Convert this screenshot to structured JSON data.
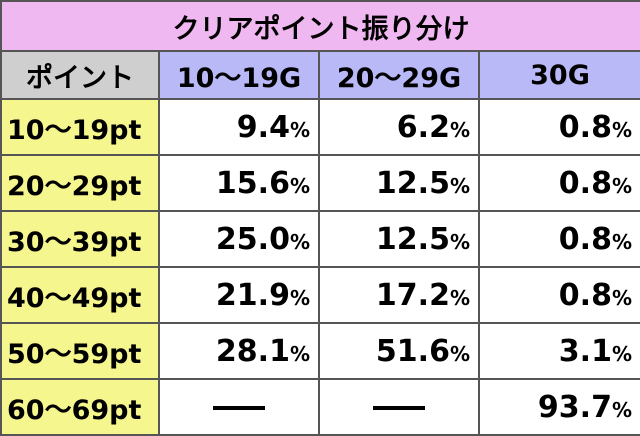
{
  "title": "クリアポイント振り分け",
  "header": {
    "corner": "ポイント",
    "columns": [
      "10〜19G",
      "20〜29G",
      "30G"
    ]
  },
  "unit": "%",
  "rows": [
    {
      "label": "10〜19pt",
      "values": [
        "9.4",
        "6.2",
        "0.8"
      ]
    },
    {
      "label": "20〜29pt",
      "values": [
        "15.6",
        "12.5",
        "0.8"
      ]
    },
    {
      "label": "30〜39pt",
      "values": [
        "25.0",
        "12.5",
        "0.8"
      ]
    },
    {
      "label": "40〜49pt",
      "values": [
        "21.9",
        "17.2",
        "0.8"
      ]
    },
    {
      "label": "50〜59pt",
      "values": [
        "28.1",
        "51.6",
        "3.1"
      ]
    },
    {
      "label": "60〜69pt",
      "values": [
        null,
        null,
        "93.7"
      ]
    }
  ],
  "colors": {
    "title_bg": "#f0b8f0",
    "corner_bg": "#cfcfcf",
    "column_header_bg": "#b9b9f7",
    "row_header_bg": "#f6f68e"
  }
}
